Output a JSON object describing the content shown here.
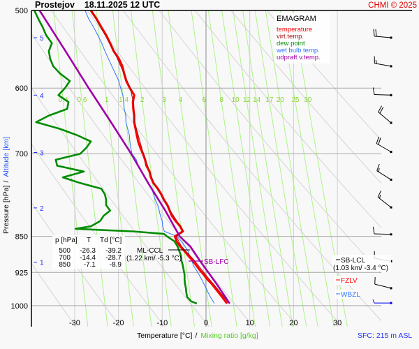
{
  "header": {
    "title": "Prostejov    18.11.2025 12 UTC",
    "copyright": "CHMI © 2025"
  },
  "legend": {
    "title": "EMAGRAM",
    "items": [
      {
        "label": "temperature",
        "color": "#ff0000"
      },
      {
        "label": "virt.temp.",
        "color": "#a01010"
      },
      {
        "label": "dew point",
        "color": "#008c00"
      },
      {
        "label": "wet bulb temp.",
        "color": "#2f74ff"
      },
      {
        "label": "udpraft v.temp.",
        "color": "#a000a8"
      }
    ]
  },
  "table": {
    "headers": [
      "p [hPa]",
      "T",
      "Td [°C]"
    ],
    "rows": [
      [
        "500",
        "-26.3",
        "-39.2"
      ],
      [
        "700",
        "-14.4",
        "-28.7"
      ],
      [
        "850",
        "-7.1",
        "-8.9"
      ]
    ]
  },
  "annotations": {
    "ml_ccl": "ML-CCL",
    "ml_ccl_detail": "(1.22 km/ -5.3 °C)",
    "sb_lfc": "SB-LFC",
    "sb_lcl": "SB-LCL",
    "sb_lcl_detail": "(1.03 km/ -3.4 °C)",
    "fzlv": "FZLV",
    "wbzl": "WBZL"
  },
  "footer": {
    "sfc": "SFC: 215 m ASL"
  },
  "chart_data": {
    "type": "line",
    "subtype": "emagram",
    "xlabel": "Temperature [°C]",
    "xlabel_secondary": "Mixing ratio [g/kg]",
    "ylabel": "Pressure [hPa]",
    "ylabel_secondary": "Altitude [km]",
    "y_scale": "log",
    "xlim": [
      -39.5,
      40
    ],
    "ylim": [
      1050,
      500
    ],
    "x_ticks": [
      "-30",
      "-20",
      "-10",
      "0",
      "10",
      "20",
      "30"
    ],
    "y_ticks": [
      "500",
      "600",
      "700",
      "850",
      "925",
      "1000"
    ],
    "altitude_ticks": [
      {
        "km": "5",
        "p": 533
      },
      {
        "km": "4",
        "p": 610
      },
      {
        "km": "3",
        "p": 698
      },
      {
        "km": "2",
        "p": 795
      },
      {
        "km": "1",
        "p": 903
      }
    ],
    "mixing_ratio_labels": [
      "0.4",
      "0.6",
      "1",
      "1.4",
      "2",
      "3",
      "4",
      "6",
      "8",
      "10",
      "12",
      "14",
      "17",
      "20",
      "25",
      "30"
    ],
    "dry_adiabats_theta_K": [
      240,
      250,
      260,
      270,
      280,
      290,
      300,
      310,
      320,
      330,
      340,
      350
    ],
    "series": [
      {
        "name": "temperature",
        "color": "#ff0000",
        "points": [
          [
            500,
            -26.3
          ],
          [
            510,
            -25.0
          ],
          [
            520,
            -23.9
          ],
          [
            530,
            -22.8
          ],
          [
            540,
            -21.9
          ],
          [
            550,
            -21.1
          ],
          [
            560,
            -19.9
          ],
          [
            570,
            -19.1
          ],
          [
            580,
            -18.7
          ],
          [
            590,
            -18.2
          ],
          [
            600,
            -17.4
          ],
          [
            610,
            -16.4
          ],
          [
            620,
            -16.7
          ],
          [
            630,
            -16.6
          ],
          [
            640,
            -16.4
          ],
          [
            650,
            -16.4
          ],
          [
            660,
            -16.1
          ],
          [
            670,
            -15.8
          ],
          [
            680,
            -15.5
          ],
          [
            690,
            -15.0
          ],
          [
            700,
            -14.4
          ],
          [
            710,
            -13.9
          ],
          [
            720,
            -13.6
          ],
          [
            730,
            -12.9
          ],
          [
            740,
            -12.6
          ],
          [
            750,
            -12.0
          ],
          [
            760,
            -11.0
          ],
          [
            770,
            -10.2
          ],
          [
            780,
            -9.6
          ],
          [
            790,
            -8.8
          ],
          [
            800,
            -8.3
          ],
          [
            810,
            -7.8
          ],
          [
            820,
            -6.9
          ],
          [
            830,
            -5.9
          ],
          [
            840,
            -5.3
          ],
          [
            845,
            -6.2
          ],
          [
            850,
            -7.1
          ],
          [
            860,
            -6.7
          ],
          [
            870,
            -5.9
          ],
          [
            880,
            -4.9
          ],
          [
            890,
            -4.0
          ],
          [
            900,
            -3.0
          ],
          [
            910,
            -2.2
          ],
          [
            920,
            -1.4
          ],
          [
            930,
            -0.5
          ],
          [
            940,
            0.3
          ],
          [
            950,
            1.3
          ],
          [
            960,
            2.1
          ],
          [
            970,
            2.9
          ],
          [
            980,
            3.7
          ],
          [
            995,
            4.8
          ]
        ]
      },
      {
        "name": "virt.temp.",
        "color": "#a01010",
        "points": [
          [
            500,
            -26.2
          ],
          [
            550,
            -21.0
          ],
          [
            600,
            -17.3
          ],
          [
            620,
            -16.6
          ],
          [
            650,
            -16.3
          ],
          [
            700,
            -14.3
          ],
          [
            750,
            -11.9
          ],
          [
            800,
            -8.2
          ],
          [
            840,
            -5.1
          ],
          [
            845,
            -6.0
          ],
          [
            850,
            -6.8
          ],
          [
            870,
            -5.6
          ],
          [
            900,
            -2.6
          ],
          [
            930,
            -0.1
          ],
          [
            960,
            2.5
          ],
          [
            995,
            5.3
          ]
        ]
      },
      {
        "name": "dew point",
        "color": "#008c00",
        "points": [
          [
            500,
            -39.2
          ],
          [
            510,
            -38.3
          ],
          [
            520,
            -37.3
          ],
          [
            530,
            -36.5
          ],
          [
            540,
            -35.2
          ],
          [
            550,
            -35.9
          ],
          [
            560,
            -35.6
          ],
          [
            570,
            -34.9
          ],
          [
            580,
            -33.3
          ],
          [
            590,
            -31.1
          ],
          [
            600,
            -32.2
          ],
          [
            610,
            -33.7
          ],
          [
            620,
            -31.4
          ],
          [
            630,
            -31.7
          ],
          [
            640,
            -35.9
          ],
          [
            650,
            -38.8
          ],
          [
            660,
            -33.5
          ],
          [
            670,
            -29.5
          ],
          [
            680,
            -26.3
          ],
          [
            690,
            -27.3
          ],
          [
            700,
            -28.7
          ],
          [
            710,
            -34.3
          ],
          [
            720,
            -34.0
          ],
          [
            730,
            -27.9
          ],
          [
            740,
            -32.7
          ],
          [
            750,
            -28.7
          ],
          [
            760,
            -23.9
          ],
          [
            770,
            -23.1
          ],
          [
            780,
            -22.8
          ],
          [
            790,
            -22.8
          ],
          [
            800,
            -21.9
          ],
          [
            810,
            -23.4
          ],
          [
            820,
            -24.2
          ],
          [
            830,
            -26.3
          ],
          [
            835,
            -29.8
          ],
          [
            840,
            -16.7
          ],
          [
            845,
            -9.6
          ],
          [
            850,
            -8.9
          ],
          [
            860,
            -7.2
          ],
          [
            870,
            -6.5
          ],
          [
            880,
            -6.1
          ],
          [
            890,
            -5.7
          ],
          [
            900,
            -5.6
          ],
          [
            910,
            -5.3
          ],
          [
            920,
            -5.1
          ],
          [
            930,
            -4.9
          ],
          [
            940,
            -4.9
          ],
          [
            950,
            -4.8
          ],
          [
            960,
            -4.6
          ],
          [
            970,
            -4.5
          ],
          [
            980,
            -4.3
          ],
          [
            990,
            -3.4
          ],
          [
            995,
            -2.1
          ]
        ]
      },
      {
        "name": "wet bulb temp.",
        "color": "#2f74ff",
        "points": [
          [
            500,
            -27.6
          ],
          [
            510,
            -26.8
          ],
          [
            520,
            -25.7
          ],
          [
            530,
            -24.7
          ],
          [
            540,
            -23.8
          ],
          [
            550,
            -23.1
          ],
          [
            560,
            -22.3
          ],
          [
            570,
            -21.5
          ],
          [
            580,
            -20.7
          ],
          [
            590,
            -19.9
          ],
          [
            600,
            -19.5
          ],
          [
            610,
            -19.0
          ],
          [
            620,
            -18.8
          ],
          [
            630,
            -18.7
          ],
          [
            640,
            -18.3
          ],
          [
            650,
            -18.3
          ],
          [
            660,
            -17.9
          ],
          [
            670,
            -17.5
          ],
          [
            680,
            -17.4
          ],
          [
            690,
            -17.2
          ],
          [
            700,
            -16.9
          ],
          [
            710,
            -15.9
          ],
          [
            720,
            -15.5
          ],
          [
            730,
            -14.7
          ],
          [
            740,
            -14.0
          ],
          [
            750,
            -13.1
          ],
          [
            760,
            -12.4
          ],
          [
            770,
            -12.0
          ],
          [
            780,
            -11.6
          ],
          [
            790,
            -11.0
          ],
          [
            800,
            -10.7
          ],
          [
            810,
            -10.4
          ],
          [
            820,
            -10.0
          ],
          [
            830,
            -9.9
          ],
          [
            840,
            -9.5
          ],
          [
            850,
            -6.6
          ],
          [
            860,
            -5.6
          ],
          [
            870,
            -4.8
          ],
          [
            880,
            -4.1
          ],
          [
            890,
            -3.7
          ],
          [
            900,
            -3.2
          ],
          [
            910,
            -2.9
          ],
          [
            920,
            -2.2
          ],
          [
            930,
            -1.6
          ],
          [
            940,
            -1.0
          ],
          [
            950,
            -0.5
          ],
          [
            960,
            0.0
          ],
          [
            970,
            0.5
          ],
          [
            980,
            1.0
          ],
          [
            995,
            1.9
          ]
        ]
      },
      {
        "name": "udpraft v.temp.",
        "color": "#a000a8",
        "points": [
          [
            500,
            -38.0
          ],
          [
            550,
            -32.1
          ],
          [
            600,
            -26.8
          ],
          [
            650,
            -21.7
          ],
          [
            700,
            -17.1
          ],
          [
            750,
            -13.2
          ],
          [
            800,
            -9.3
          ],
          [
            850,
            -6.0
          ],
          [
            870,
            -3.6
          ],
          [
            900,
            -1.4
          ],
          [
            950,
            2.4
          ],
          [
            995,
            5.4
          ]
        ]
      }
    ],
    "wind_barbs": [
      {
        "p": 533,
        "dir_deg": 275,
        "speed_kt": 20
      },
      {
        "p": 570,
        "dir_deg": 280,
        "speed_kt": 15
      },
      {
        "p": 610,
        "dir_deg": 272,
        "speed_kt": 10
      },
      {
        "p": 651,
        "dir_deg": 310,
        "speed_kt": 20
      },
      {
        "p": 697,
        "dir_deg": 300,
        "speed_kt": 20
      },
      {
        "p": 744,
        "dir_deg": 302,
        "speed_kt": 15
      },
      {
        "p": 794,
        "dir_deg": 308,
        "speed_kt": 15
      },
      {
        "p": 846,
        "dir_deg": 272,
        "speed_kt": 10
      },
      {
        "p": 901,
        "dir_deg": 280,
        "speed_kt": 10
      },
      {
        "p": 960,
        "dir_deg": 284,
        "speed_kt": 10
      },
      {
        "p": 994,
        "dir_deg": 270,
        "speed_kt": 5,
        "surface": true
      }
    ]
  }
}
